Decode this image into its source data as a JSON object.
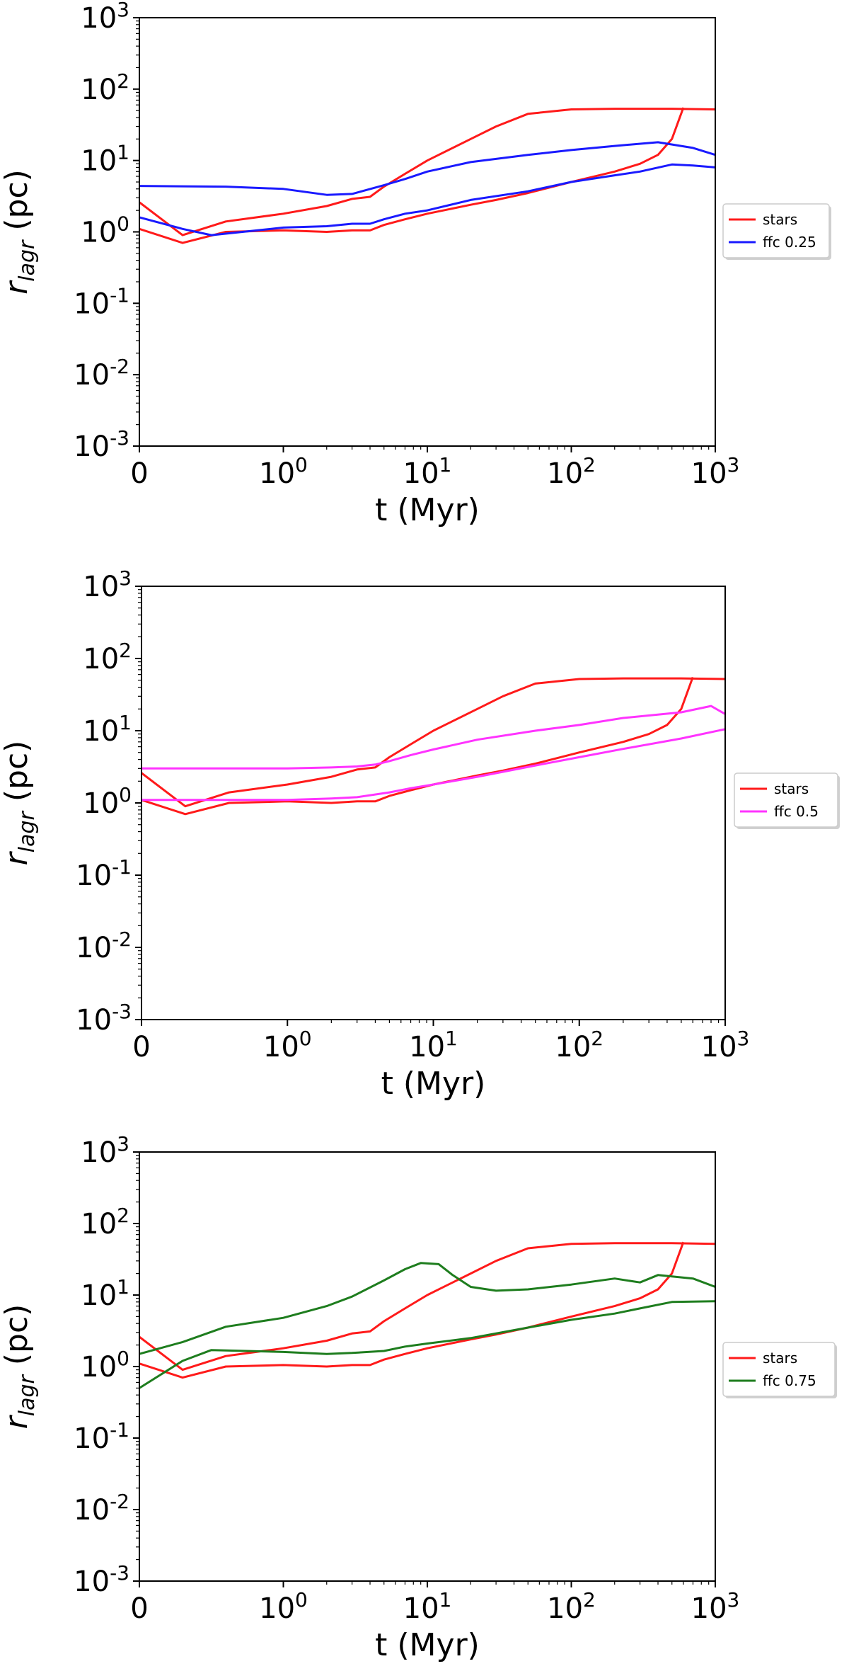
{
  "colors": {
    "stars": "#ff1a1a",
    "ffc_025": "#1a1aff",
    "ffc_05": "#ff33ff",
    "ffc_075": "#1e7d1e"
  },
  "chart_data": [
    {
      "type": "line",
      "xscale": "symlog",
      "yscale": "log",
      "xlim": [
        0,
        1000
      ],
      "ylim": [
        0.001,
        1000
      ],
      "xlabel": "t (Myr)",
      "ylabel": "r_lagr (pc)",
      "xticks": [
        "0",
        "10^0",
        "10^1",
        "10^2",
        "10^3"
      ],
      "yticks": [
        "10^-3",
        "10^-2",
        "10^-1",
        "10^0",
        "10^1",
        "10^2",
        "10^3"
      ],
      "legend": [
        "stars",
        "ffc 0.25"
      ],
      "legend_position": "right",
      "series": [
        {
          "name": "stars",
          "color": "#ff1a1a",
          "x": [
            0,
            0.3,
            0.6,
            1,
            2,
            3,
            4,
            5,
            7,
            10,
            20,
            30,
            50,
            100,
            200,
            500,
            1000
          ],
          "y": [
            2.6,
            0.9,
            1.4,
            1.8,
            2.3,
            2.9,
            3.1,
            4.3,
            6.5,
            10,
            20,
            30,
            45,
            52,
            53,
            53,
            52
          ]
        },
        {
          "name": "stars",
          "color": "#ff1a1a",
          "x": [
            0,
            0.3,
            0.6,
            1,
            2,
            3,
            4,
            5,
            7,
            10,
            20,
            30,
            50,
            100,
            200,
            300,
            400,
            500,
            600
          ],
          "y": [
            1.1,
            0.7,
            1.0,
            1.05,
            1.0,
            1.05,
            1.05,
            1.25,
            1.5,
            1.8,
            2.4,
            2.8,
            3.5,
            5,
            7,
            9,
            12,
            20,
            55
          ]
        },
        {
          "name": "ffc 0.25",
          "color": "#1a1aff",
          "x": [
            0,
            0.6,
            1,
            2,
            3,
            5,
            7,
            10,
            20,
            50,
            100,
            200,
            400,
            700,
            1000
          ],
          "y": [
            4.4,
            4.3,
            4.0,
            3.3,
            3.4,
            4.5,
            5.5,
            7,
            9.5,
            12,
            14,
            16,
            18,
            15,
            12
          ]
        },
        {
          "name": "ffc 0.25",
          "color": "#1a1aff",
          "x": [
            0,
            0.3,
            0.5,
            1,
            2,
            3,
            4,
            5,
            7,
            10,
            20,
            50,
            100,
            200,
            300,
            500,
            700,
            1000
          ],
          "y": [
            1.6,
            1.1,
            0.9,
            1.15,
            1.2,
            1.3,
            1.3,
            1.5,
            1.8,
            2.0,
            2.8,
            3.7,
            5.0,
            6.2,
            7.0,
            8.8,
            8.5,
            8.0
          ]
        }
      ]
    },
    {
      "type": "line",
      "xscale": "symlog",
      "yscale": "log",
      "xlim": [
        0,
        1000
      ],
      "ylim": [
        0.001,
        1000
      ],
      "xlabel": "t (Myr)",
      "ylabel": "r_lagr (pc)",
      "xticks": [
        "0",
        "10^0",
        "10^1",
        "10^2",
        "10^3"
      ],
      "yticks": [
        "10^-3",
        "10^-2",
        "10^-1",
        "10^0",
        "10^1",
        "10^2",
        "10^3"
      ],
      "legend": [
        "stars",
        "ffc 0.5"
      ],
      "legend_position": "right",
      "series": [
        {
          "name": "stars",
          "color": "#ff1a1a",
          "x": [
            0,
            0.3,
            0.6,
            1,
            2,
            3,
            4,
            5,
            7,
            10,
            20,
            30,
            50,
            100,
            200,
            500,
            1000
          ],
          "y": [
            2.6,
            0.9,
            1.4,
            1.8,
            2.3,
            2.9,
            3.1,
            4.3,
            6.5,
            10,
            20,
            30,
            45,
            52,
            53,
            53,
            52
          ]
        },
        {
          "name": "stars",
          "color": "#ff1a1a",
          "x": [
            0,
            0.3,
            0.6,
            1,
            2,
            3,
            4,
            5,
            7,
            10,
            20,
            30,
            50,
            100,
            200,
            300,
            400,
            500,
            600
          ],
          "y": [
            1.1,
            0.7,
            1.0,
            1.05,
            1.0,
            1.05,
            1.05,
            1.25,
            1.5,
            1.8,
            2.4,
            2.8,
            3.5,
            5,
            7,
            9,
            12,
            20,
            55
          ]
        },
        {
          "name": "ffc 0.5",
          "color": "#ff33ff",
          "x": [
            0,
            1,
            2,
            3,
            4,
            5,
            7,
            10,
            20,
            50,
            100,
            200,
            500,
            800,
            1000
          ],
          "y": [
            3.0,
            3.0,
            3.1,
            3.2,
            3.4,
            3.8,
            4.6,
            5.5,
            7.5,
            10,
            12,
            15,
            18,
            22,
            17
          ]
        },
        {
          "name": "ffc 0.5",
          "color": "#ff33ff",
          "x": [
            0,
            0.3,
            1,
            2,
            3,
            5,
            7,
            10,
            20,
            50,
            100,
            200,
            500,
            1000
          ],
          "y": [
            1.1,
            1.1,
            1.1,
            1.15,
            1.2,
            1.4,
            1.6,
            1.8,
            2.3,
            3.3,
            4.3,
            5.6,
            7.8,
            10.5
          ]
        }
      ]
    },
    {
      "type": "line",
      "xscale": "symlog",
      "yscale": "log",
      "xlim": [
        0,
        1000
      ],
      "ylim": [
        0.001,
        1000
      ],
      "xlabel": "t (Myr)",
      "ylabel": "r_lagr (pc)",
      "xticks": [
        "0",
        "10^0",
        "10^1",
        "10^2",
        "10^3"
      ],
      "yticks": [
        "10^-3",
        "10^-2",
        "10^-1",
        "10^0",
        "10^1",
        "10^2",
        "10^3"
      ],
      "legend": [
        "stars",
        "ffc 0.75"
      ],
      "legend_position": "right",
      "series": [
        {
          "name": "stars",
          "color": "#ff1a1a",
          "x": [
            0,
            0.3,
            0.6,
            1,
            2,
            3,
            4,
            5,
            7,
            10,
            20,
            30,
            50,
            100,
            200,
            500,
            1000
          ],
          "y": [
            2.6,
            0.9,
            1.4,
            1.8,
            2.3,
            2.9,
            3.1,
            4.3,
            6.5,
            10,
            20,
            30,
            45,
            52,
            53,
            53,
            52
          ]
        },
        {
          "name": "stars",
          "color": "#ff1a1a",
          "x": [
            0,
            0.3,
            0.6,
            1,
            2,
            3,
            4,
            5,
            7,
            10,
            20,
            30,
            50,
            100,
            200,
            300,
            400,
            500,
            600
          ],
          "y": [
            1.1,
            0.7,
            1.0,
            1.05,
            1.0,
            1.05,
            1.05,
            1.25,
            1.5,
            1.8,
            2.4,
            2.8,
            3.5,
            5,
            7,
            9,
            12,
            20,
            55
          ]
        },
        {
          "name": "ffc 0.75",
          "color": "#1e7d1e",
          "x": [
            0,
            0.3,
            0.6,
            1,
            2,
            3,
            5,
            7,
            9,
            12,
            15,
            20,
            30,
            50,
            100,
            200,
            300,
            400,
            700,
            1000
          ],
          "y": [
            1.5,
            2.2,
            3.6,
            4.8,
            7.0,
            9.5,
            16,
            23,
            28,
            27,
            19,
            13,
            11.5,
            12,
            14,
            17,
            15,
            19,
            17,
            13
          ]
        },
        {
          "name": "ffc 0.75",
          "color": "#1e7d1e",
          "x": [
            0,
            0.3,
            0.5,
            1,
            2,
            3,
            5,
            7,
            10,
            20,
            50,
            100,
            200,
            300,
            500,
            1000
          ],
          "y": [
            0.5,
            1.2,
            1.7,
            1.6,
            1.5,
            1.55,
            1.65,
            1.9,
            2.1,
            2.5,
            3.5,
            4.5,
            5.5,
            6.5,
            8.0,
            8.2
          ]
        }
      ]
    }
  ]
}
